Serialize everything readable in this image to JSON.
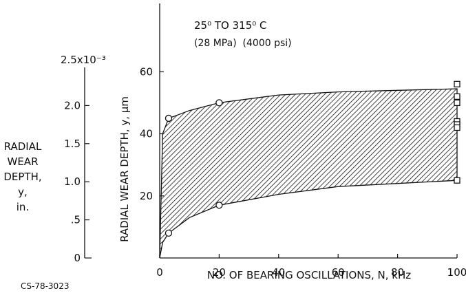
{
  "chart_data": {
    "type": "area",
    "annotation": {
      "temp_line": "25⁰ TO 315⁰ C",
      "pressure_line": "(28 MPa)  (4000 psi)"
    },
    "xlabel": "NO. OF BEARING OSCILLATIONS, N, kHz",
    "ylabel": "RADIAL WEAR DEPTH, y, μm",
    "xlim": [
      0,
      100
    ],
    "ylim": [
      0,
      82
    ],
    "x_ticks": [
      "0",
      "20",
      "40",
      "60",
      "80",
      "100"
    ],
    "y_ticks": [
      "20",
      "40",
      "60"
    ],
    "secondary_axis": {
      "label_lines": [
        "RADIAL",
        "WEAR",
        "DEPTH,",
        "y,",
        "in."
      ],
      "ticks": [
        "0",
        ".5",
        "1.0",
        "1.5",
        "2.0",
        "2.5x10⁻³"
      ],
      "tick_values_in": [
        0,
        0.0005,
        0.001,
        0.0015,
        0.002,
        0.0025
      ]
    },
    "series": [
      {
        "marker": "circle",
        "x": [
          3,
          3,
          20,
          20
        ],
        "y": [
          8,
          45,
          17,
          50
        ]
      },
      {
        "marker": "square",
        "x": [
          100,
          100,
          100,
          100,
          100,
          100,
          100
        ],
        "y": [
          56,
          52,
          50,
          44,
          43,
          42,
          25
        ]
      }
    ],
    "band_upper": {
      "x": [
        0,
        1,
        3,
        10,
        20,
        40,
        60,
        80,
        100
      ],
      "y": [
        0,
        40,
        45,
        47.5,
        50,
        52.5,
        53.5,
        54,
        54.5
      ]
    },
    "band_lower": {
      "x": [
        0,
        1,
        3,
        10,
        20,
        40,
        60,
        80,
        100
      ],
      "y": [
        0,
        5,
        8,
        13,
        17,
        20.5,
        23,
        24,
        25
      ]
    },
    "legend": "none",
    "grid": false
  },
  "figure_code": "CS-78-3023"
}
